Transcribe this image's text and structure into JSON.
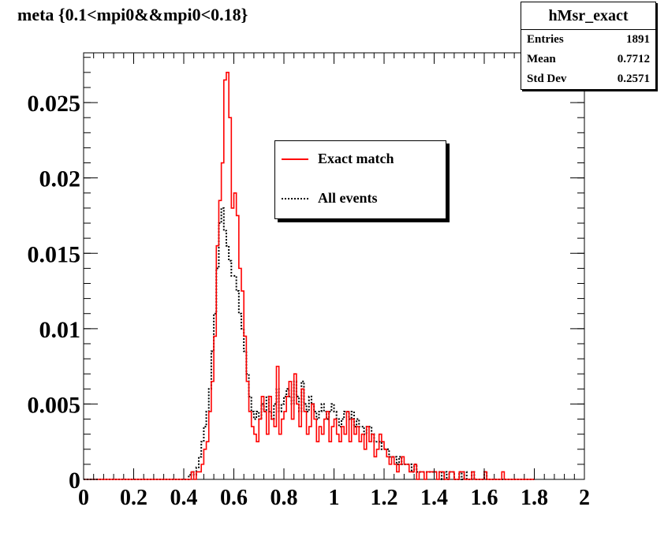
{
  "chart_data": {
    "type": "histogram",
    "title": "meta {0.1<mpi0&&mpi0<0.18}",
    "xlabel": "",
    "ylabel": "",
    "xlim": [
      0,
      2
    ],
    "ylim": [
      0,
      0.0283
    ],
    "x_ticks": [
      "0",
      "0.2",
      "0.4",
      "0.6",
      "0.8",
      "1",
      "1.2",
      "1.4",
      "1.6",
      "1.8",
      "2"
    ],
    "x_tick_values": [
      0,
      0.2,
      0.4,
      0.6,
      0.8,
      1.0,
      1.2,
      1.4,
      1.6,
      1.8,
      2.0
    ],
    "y_ticks": [
      "0",
      "0.005",
      "0.01",
      "0.015",
      "0.02",
      "0.025"
    ],
    "y_tick_values": [
      0,
      0.005,
      0.01,
      0.015,
      0.02,
      0.025
    ],
    "bin_width": 0.01,
    "legend": {
      "placement": "upper-center"
    },
    "stats_box": {
      "name": "hMsr_exact",
      "rows": [
        {
          "label": "Entries",
          "value": "1891"
        },
        {
          "label": "Mean",
          "value": "0.7712"
        },
        {
          "label": "Std Dev",
          "value": "0.2571"
        }
      ]
    },
    "series": [
      {
        "name": "Exact match",
        "color": "#ff0000",
        "style": "solid",
        "values": [
          0,
          0,
          0,
          0,
          0,
          0,
          0,
          0,
          0,
          0,
          0,
          0,
          0,
          0,
          0,
          0,
          0,
          0,
          0,
          0,
          0,
          0,
          0,
          0,
          0,
          0,
          0,
          0,
          0,
          0,
          0,
          0,
          0,
          0,
          0,
          0,
          0,
          0,
          0,
          0,
          0,
          0,
          0,
          0.0005,
          0,
          0.0005,
          0.0005,
          0.001,
          0.002,
          0.0025,
          0.0045,
          0.0065,
          0.0095,
          0.0155,
          0.0185,
          0.021,
          0.0265,
          0.027,
          0.024,
          0.018,
          0.019,
          0.0175,
          0.014,
          0.0125,
          0.0095,
          0.0065,
          0.0045,
          0.0035,
          0.003,
          0.0025,
          0.004,
          0.0055,
          0.0045,
          0.003,
          0.0055,
          0.004,
          0.0035,
          0.0075,
          0.003,
          0.004,
          0.0045,
          0.0055,
          0.0065,
          0.004,
          0.007,
          0.005,
          0.0035,
          0.006,
          0.0045,
          0.003,
          0.0035,
          0.005,
          0.004,
          0.0025,
          0.0035,
          0.003,
          0.004,
          0.0045,
          0.0025,
          0.0035,
          0.004,
          0.003,
          0.0025,
          0.0035,
          0.003,
          0.0045,
          0.0025,
          0.004,
          0.003,
          0.0035,
          0.0025,
          0.003,
          0.002,
          0.0035,
          0.0025,
          0.003,
          0.0015,
          0.002,
          0.003,
          0.0025,
          0.002,
          0.0015,
          0.001,
          0.0015,
          0.001,
          0.0005,
          0.001,
          0.0015,
          0.001,
          0.001,
          0.0005,
          0.0005,
          0.001,
          0,
          0.0005,
          0.0005,
          0,
          0.0005,
          0.0005,
          0.0005,
          0.0005,
          0,
          0.0005,
          0.0005,
          0,
          0,
          0.0005,
          0.0005,
          0,
          0,
          0.0005,
          0.0005,
          0,
          0,
          0,
          0.0005,
          0,
          0,
          0,
          0,
          0.0005,
          0,
          0,
          0,
          0,
          0,
          0,
          0.0005,
          0,
          0,
          0,
          0,
          0,
          0,
          0,
          0,
          0,
          0,
          0,
          0
        ]
      },
      {
        "name": "All events",
        "color": "#000000",
        "style": "dotted",
        "values": [
          0,
          0,
          0,
          0,
          0,
          0,
          0,
          0,
          0,
          0,
          0,
          0,
          0,
          0,
          0,
          0,
          0,
          0,
          0,
          0,
          0,
          0,
          0,
          0,
          0,
          0,
          0,
          0,
          0,
          0,
          0,
          0,
          0,
          0,
          0,
          0,
          0,
          0,
          0,
          0,
          0,
          0,
          0.0003,
          0.0005,
          0.0003,
          0.0008,
          0.0015,
          0.0025,
          0.0035,
          0.0045,
          0.006,
          0.0085,
          0.011,
          0.014,
          0.017,
          0.018,
          0.0165,
          0.0155,
          0.0145,
          0.0135,
          0.0135,
          0.0125,
          0.011,
          0.01,
          0.0085,
          0.007,
          0.0055,
          0.0045,
          0.004,
          0.0045,
          0.004,
          0.005,
          0.0045,
          0.0055,
          0.0045,
          0.004,
          0.005,
          0.006,
          0.0045,
          0.005,
          0.0055,
          0.006,
          0.0055,
          0.005,
          0.0065,
          0.0055,
          0.0045,
          0.0065,
          0.005,
          0.0045,
          0.0055,
          0.005,
          0.0045,
          0.004,
          0.0045,
          0.005,
          0.0045,
          0.004,
          0.0045,
          0.005,
          0.0045,
          0.004,
          0.0035,
          0.004,
          0.0045,
          0.0045,
          0.004,
          0.0045,
          0.0035,
          0.004,
          0.0035,
          0.0035,
          0.003,
          0.0035,
          0.0035,
          0.003,
          0.0025,
          0.0025,
          0.0025,
          0.002,
          0.002,
          0.002,
          0.0015,
          0.0015,
          0.0015,
          0.001,
          0.0015,
          0.001,
          0.001,
          0.001,
          0.001,
          0.0005,
          0.001,
          0.0005,
          0.0005,
          0.0005,
          0.0005,
          0.0005,
          0.0005,
          0.0005,
          0.0005,
          0.0005,
          0.0005,
          0,
          0.0005,
          0,
          0.0005,
          0.0005,
          0,
          0,
          0.0005,
          0,
          0.0005,
          0,
          0,
          0.0005,
          0,
          0,
          0,
          0,
          0.0005,
          0,
          0,
          0,
          0,
          0,
          0,
          0,
          0,
          0,
          0,
          0,
          0,
          0,
          0,
          0,
          0,
          0,
          0,
          0
        ]
      }
    ]
  }
}
